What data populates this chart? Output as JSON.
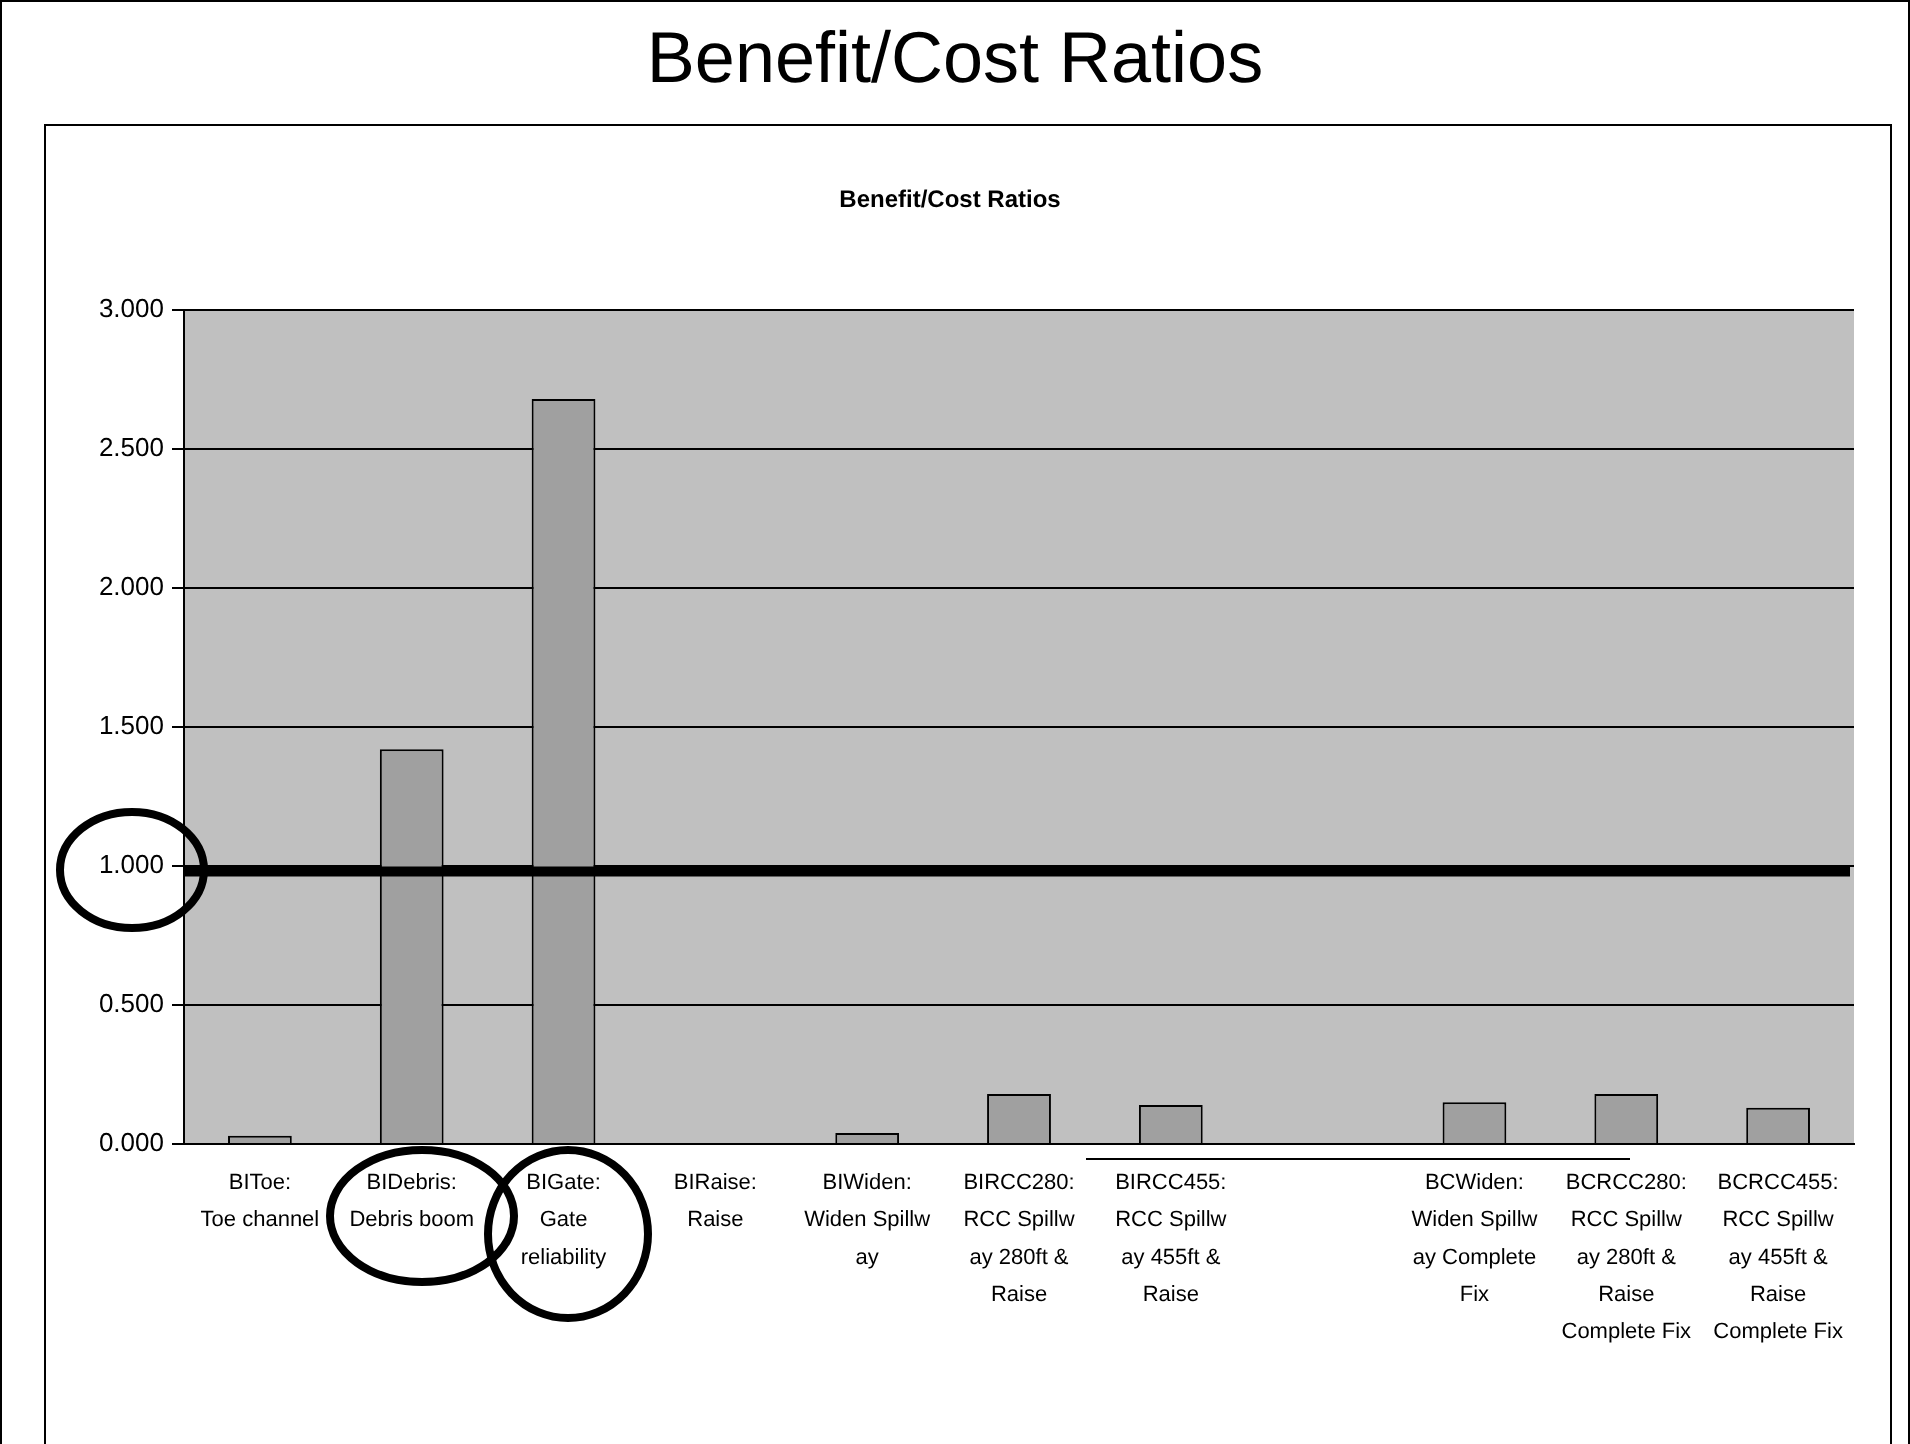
{
  "chart_data": {
    "type": "bar",
    "title": "Benefit/Cost Ratios",
    "subtitle": "Benefit/Cost Ratios",
    "categories": [
      "BIToe: Toe channel",
      "BIDebris: Debris boom",
      "BIGate: Gate reliability",
      "BIRaise: Raise",
      "BIWiden: Widen Spillw ay",
      "BIRCC280: RCC Spillw ay 280ft & Raise",
      "BIRCC455: RCC Spillw ay 455ft & Raise",
      null,
      "BCWiden: Widen Spillw ay Complete Fix",
      "BCRCC280: RCC Spillw ay 280ft & Raise Complete Fix",
      "BCRCC455: RCC Spillw ay 455ft & Raise Complete Fix"
    ],
    "values": [
      0.03,
      1.42,
      2.68,
      0,
      0.04,
      0.18,
      0.14,
      null,
      0.15,
      0.18,
      0.13
    ],
    "color": "#a0a0a0",
    "ylim": [
      0,
      3
    ],
    "yticks": [
      {
        "value": 0,
        "label": "0.000"
      },
      {
        "value": 0.5,
        "label": "0.500"
      },
      {
        "value": 1,
        "label": "1.000"
      },
      {
        "value": 1.5,
        "label": "1.500"
      },
      {
        "value": 2,
        "label": "2.000"
      },
      {
        "value": 2.5,
        "label": "2.500"
      },
      {
        "value": 3,
        "label": "3.000"
      }
    ],
    "grid": "y",
    "legend": false,
    "ref_lines": [
      {
        "axis": "y",
        "value": 0.98,
        "color": "#000000"
      }
    ]
  }
}
